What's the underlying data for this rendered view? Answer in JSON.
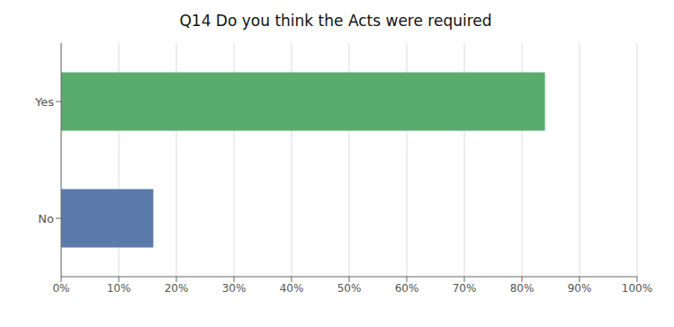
{
  "chart_data": {
    "type": "bar",
    "title": "Q14 Do you think the Acts were required",
    "orientation": "horizontal",
    "categories": [
      "No",
      "Yes"
    ],
    "values": [
      0.16,
      0.84
    ],
    "colors": [
      "#5b7bab",
      "#5aab6e"
    ],
    "xlim": [
      0,
      1.0
    ],
    "xticks": [
      {
        "value": 0.0,
        "label": "0%"
      },
      {
        "value": 0.1,
        "label": "10%"
      },
      {
        "value": 0.2,
        "label": "20%"
      },
      {
        "value": 0.3,
        "label": "30%"
      },
      {
        "value": 0.4,
        "label": "40%"
      },
      {
        "value": 0.5,
        "label": "50%"
      },
      {
        "value": 0.6,
        "label": "60%"
      },
      {
        "value": 0.7,
        "label": "70%"
      },
      {
        "value": 0.8,
        "label": "80%"
      },
      {
        "value": 0.9,
        "label": "90%"
      },
      {
        "value": 1.0,
        "label": "100%"
      }
    ],
    "grid": true
  }
}
